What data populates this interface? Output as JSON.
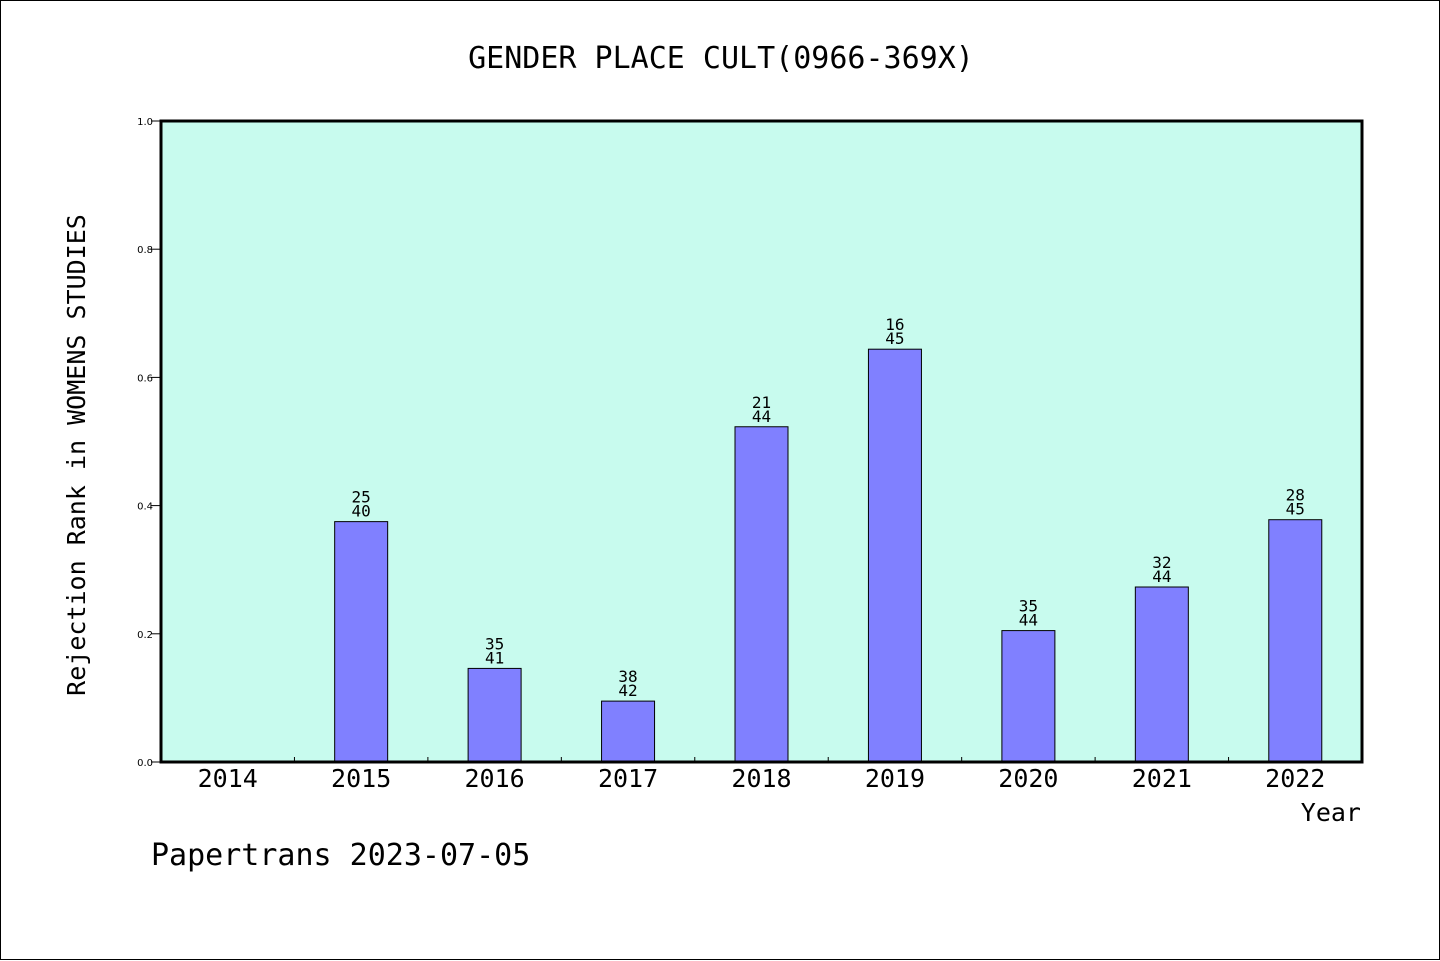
{
  "chart_data": {
    "type": "bar",
    "title": "GENDER PLACE CULT(0966-369X)",
    "xlabel": "Year",
    "ylabel": "Rejection Rank in WOMENS STUDIES",
    "categories": [
      "2014",
      "2015",
      "2016",
      "2017",
      "2018",
      "2019",
      "2020",
      "2021",
      "2022"
    ],
    "values": [
      null,
      0.375,
      0.146,
      0.095,
      0.523,
      0.644,
      0.205,
      0.273,
      0.378
    ],
    "bar_labels": [
      null,
      [
        "25",
        "40"
      ],
      [
        "35",
        "41"
      ],
      [
        "38",
        "42"
      ],
      [
        "21",
        "44"
      ],
      [
        "16",
        "45"
      ],
      [
        "35",
        "44"
      ],
      [
        "32",
        "44"
      ],
      [
        "28",
        "45"
      ]
    ],
    "ylim": [
      0,
      1.0
    ],
    "yticks": [
      "0.0",
      "0.2",
      "0.4",
      "0.6",
      "0.8",
      "1.0"
    ],
    "grid": false,
    "plot_background": "#c8fbee",
    "bar_color": "#8080ff",
    "footer": "Papertrans 2023-07-05"
  }
}
